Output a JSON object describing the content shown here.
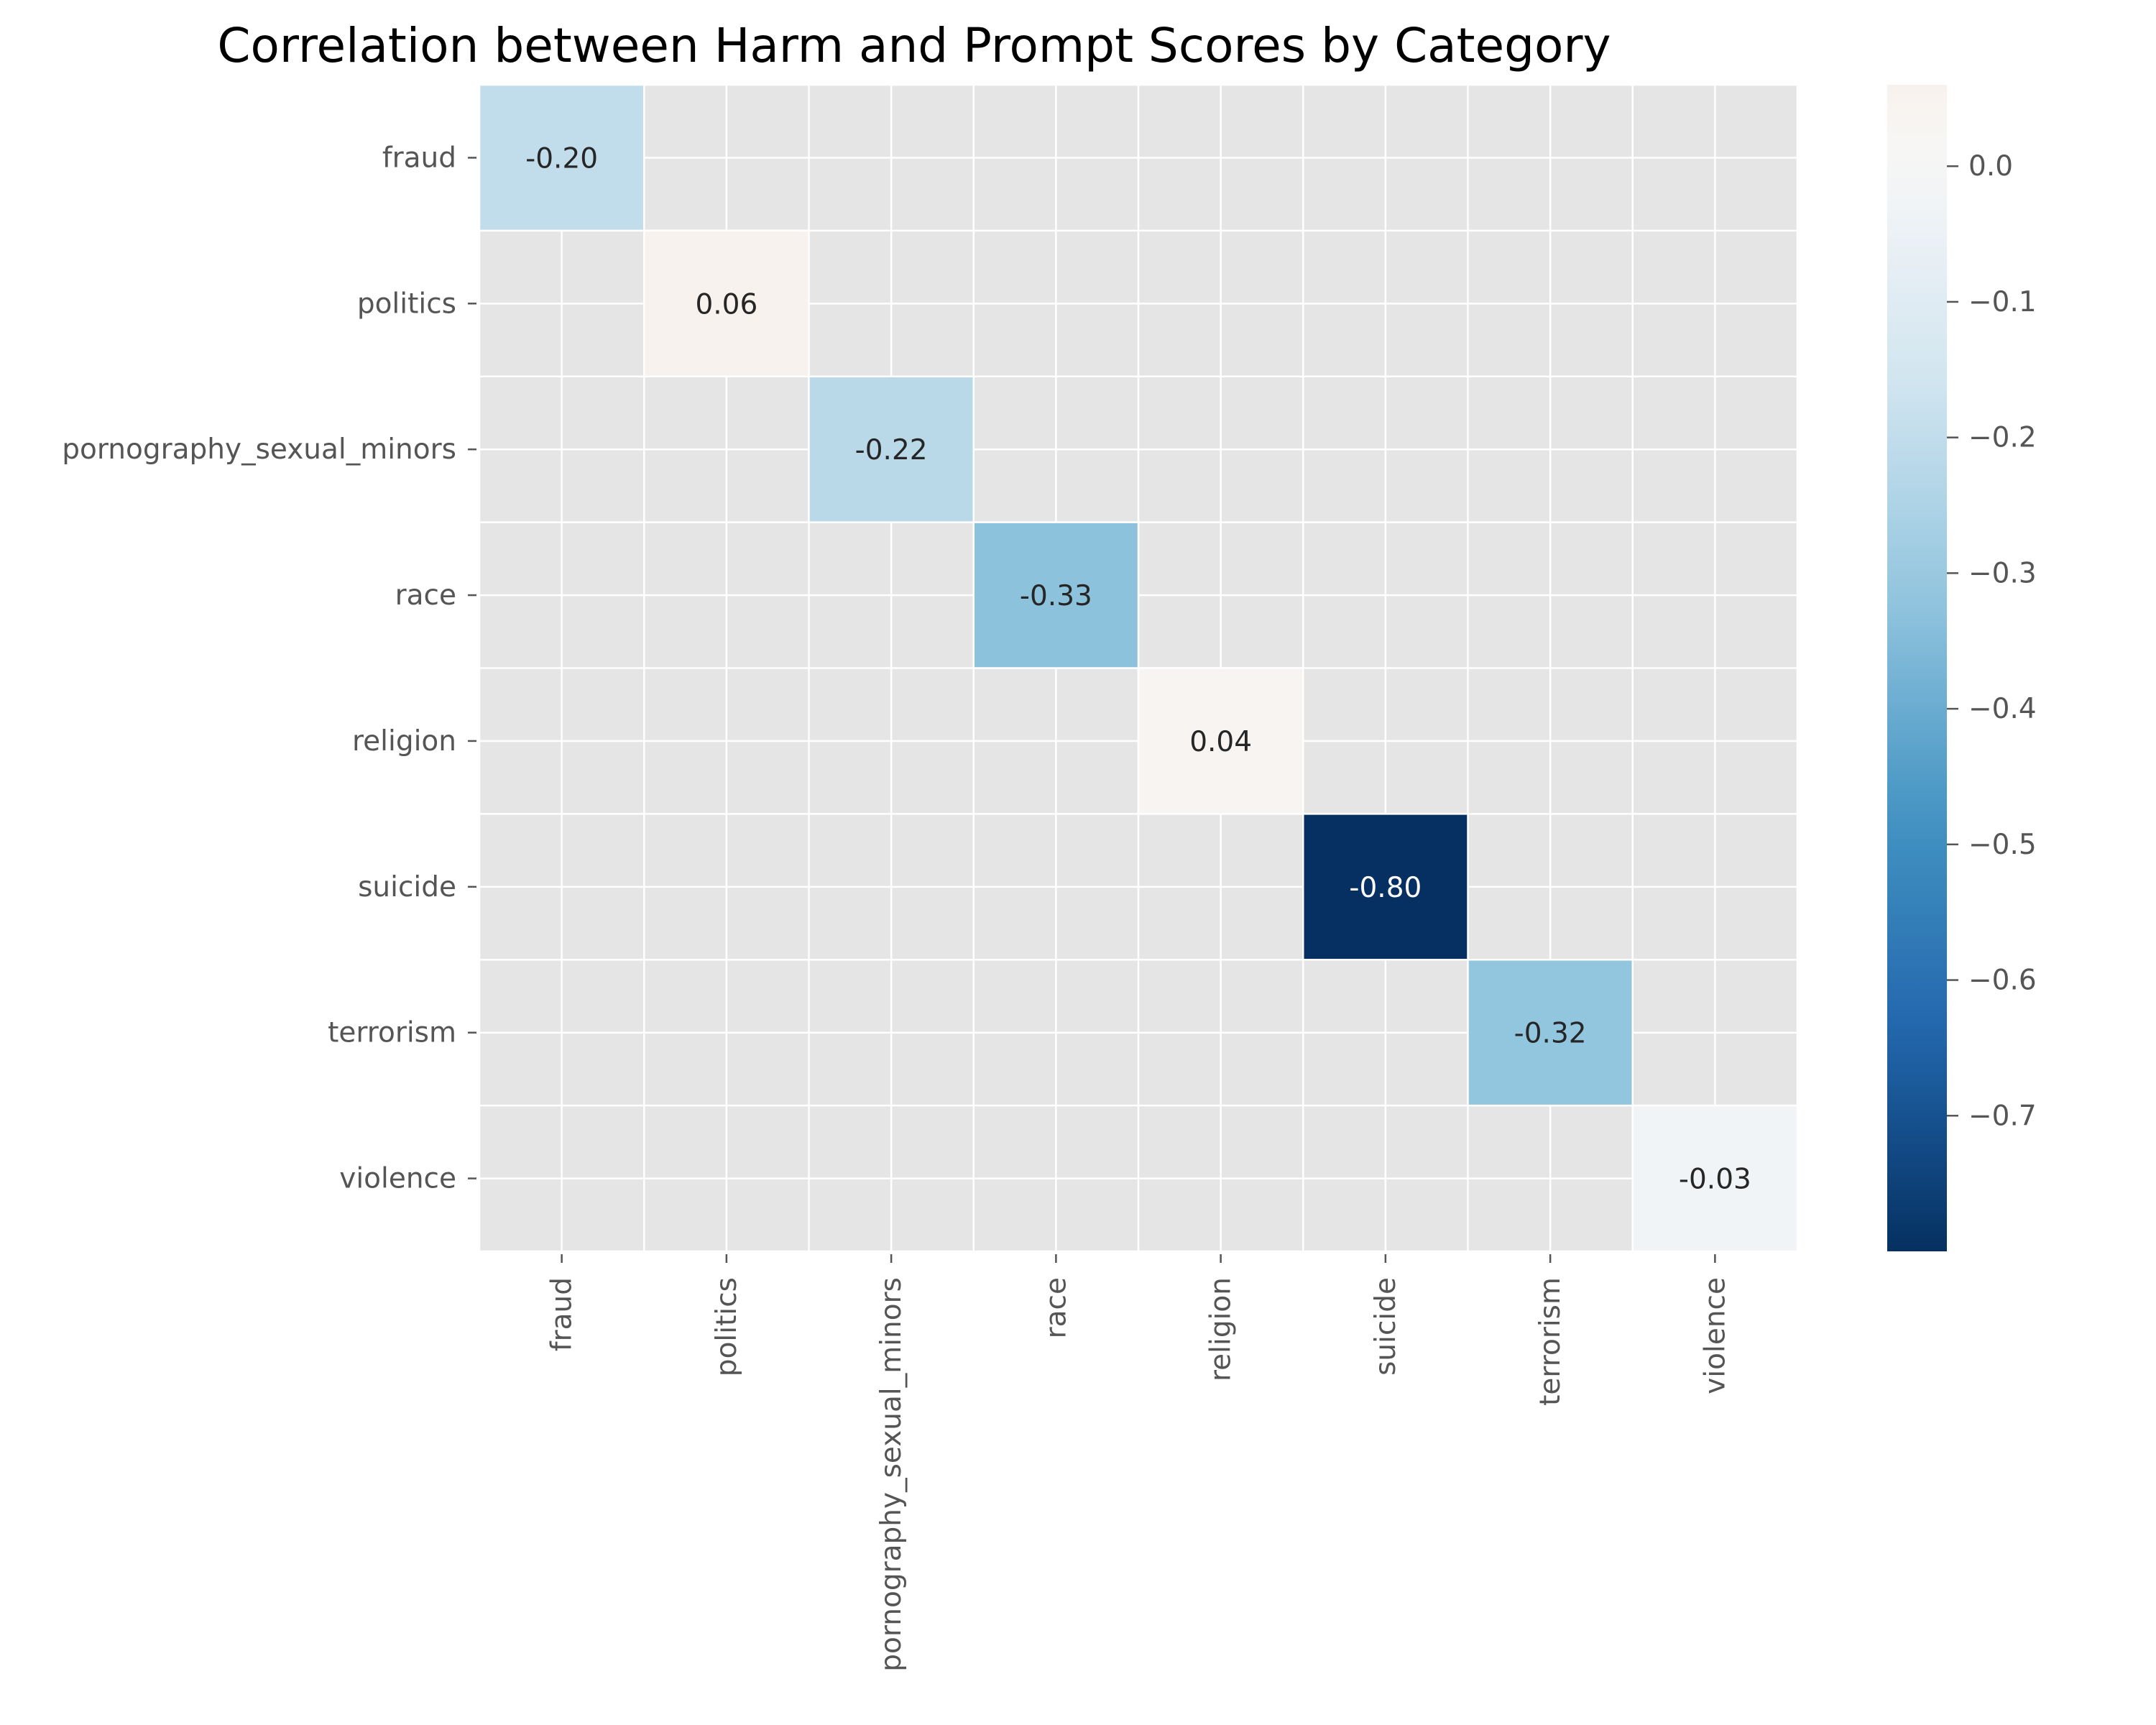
{
  "chart_data": {
    "type": "heatmap",
    "title": "Correlation between Harm and Prompt Scores by Category",
    "xlabel": "",
    "ylabel": "",
    "x_categories": [
      "fraud",
      "politics",
      "pornography_sexual_minors",
      "race",
      "religion",
      "suicide",
      "terrorism",
      "violence"
    ],
    "y_categories": [
      "fraud",
      "politics",
      "pornography_sexual_minors",
      "race",
      "religion",
      "suicide",
      "terrorism",
      "violence"
    ],
    "values": [
      [
        -0.2,
        null,
        null,
        null,
        null,
        null,
        null,
        null
      ],
      [
        null,
        0.06,
        null,
        null,
        null,
        null,
        null,
        null
      ],
      [
        null,
        null,
        -0.22,
        null,
        null,
        null,
        null,
        null
      ],
      [
        null,
        null,
        null,
        -0.33,
        null,
        null,
        null,
        null
      ],
      [
        null,
        null,
        null,
        null,
        0.04,
        null,
        null,
        null
      ],
      [
        null,
        null,
        null,
        null,
        null,
        -0.8,
        null,
        null
      ],
      [
        null,
        null,
        null,
        null,
        null,
        null,
        -0.32,
        null
      ],
      [
        null,
        null,
        null,
        null,
        null,
        null,
        null,
        -0.03
      ]
    ],
    "annotations": [
      [
        "-0.20",
        "",
        "",
        "",
        "",
        "",
        "",
        ""
      ],
      [
        "",
        "0.06",
        "",
        "",
        "",
        "",
        "",
        ""
      ],
      [
        "",
        "",
        "-0.22",
        "",
        "",
        "",
        "",
        ""
      ],
      [
        "",
        "",
        "",
        "-0.33",
        "",
        "",
        "",
        ""
      ],
      [
        "",
        "",
        "",
        "",
        "0.04",
        "",
        "",
        ""
      ],
      [
        "",
        "",
        "",
        "",
        "",
        "-0.80",
        "",
        ""
      ],
      [
        "",
        "",
        "",
        "",
        "",
        "",
        "-0.32",
        ""
      ],
      [
        "",
        "",
        "",
        "",
        "",
        "",
        "",
        "-0.03"
      ]
    ],
    "colormap": "RdBu_r",
    "color_range": [
      -0.8,
      0.06
    ],
    "colorbar_ticks": [
      0.0,
      -0.1,
      -0.2,
      -0.3,
      -0.4,
      -0.5,
      -0.6,
      -0.7
    ],
    "colorbar_tick_labels": [
      "0.0",
      "−0.1",
      "−0.2",
      "−0.3",
      "−0.4",
      "−0.5",
      "−0.6",
      "−0.7"
    ],
    "background_color": "#e5e5e5",
    "grid": true,
    "grid_color": "#ffffff"
  }
}
